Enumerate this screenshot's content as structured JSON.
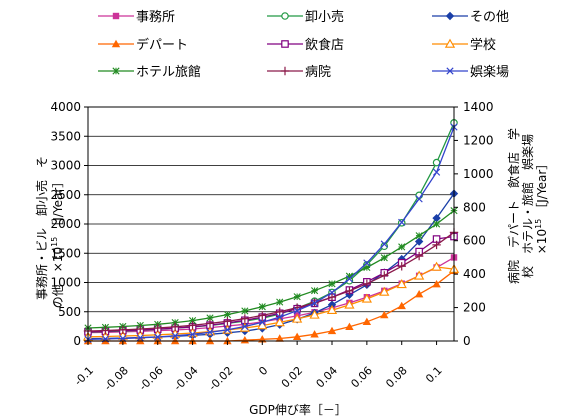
{
  "chart_data": {
    "type": "line",
    "x": [
      -0.1,
      -0.09,
      -0.08,
      -0.07,
      -0.06,
      -0.05,
      -0.04,
      -0.03,
      -0.02,
      -0.01,
      0,
      0.01,
      0.02,
      0.03,
      0.04,
      0.05,
      0.06,
      0.07,
      0.08,
      0.09,
      0.1,
      0.11
    ],
    "x_ticks": [
      "-0.1",
      "-0.08",
      "-0.06",
      "-0.04",
      "-0.02",
      "0",
      "0.02",
      "0.04",
      "0.06",
      "0.08",
      "0.1"
    ],
    "x_tick_values": [
      -0.1,
      -0.08,
      -0.06,
      -0.04,
      -0.02,
      0,
      0.02,
      0.04,
      0.06,
      0.08,
      0.1
    ],
    "xlim": [
      -0.1,
      0.11
    ],
    "xlabel": "GDP伸び率［－］",
    "y_left": {
      "lim": [
        0,
        4000
      ],
      "ticks": [
        "0",
        "500",
        "1000",
        "1500",
        "2000",
        "2500",
        "3000",
        "3500",
        "4000"
      ],
      "tick_values": [
        0,
        500,
        1000,
        1500,
        2000,
        2500,
        3000,
        3500,
        4000
      ]
    },
    "y_right": {
      "lim": [
        0,
        1400
      ],
      "ticks": [
        "0",
        "200",
        "400",
        "600",
        "800",
        "1000",
        "1200",
        "1400"
      ],
      "tick_values": [
        0,
        200,
        400,
        600,
        800,
        1000,
        1200,
        1400
      ]
    },
    "ylabel_left": {
      "line1": "事務所・ビル　卸小売　そ",
      "line2": "の他　×10",
      "sup": "15",
      "unit": "［J/Year］"
    },
    "ylabel_right": {
      "line1": "病院　デパート　飲食店　学",
      "line2": "校　ホテル・旅館　娯楽場",
      "line3": "×10",
      "sup": "15",
      "unit": "［J/Year］"
    },
    "grid": "horizontal",
    "legend_placement": "top",
    "series": [
      {
        "name": "事務所",
        "axis": "right",
        "color": "#cc3399",
        "marker": "square-filled",
        "values": [
          50,
          52,
          55,
          58,
          62,
          66,
          72,
          80,
          90,
          100,
          115,
          132,
          150,
          172,
          198,
          228,
          262,
          300,
          343,
          390,
          440,
          500
        ]
      },
      {
        "name": "卸小売",
        "axis": "left",
        "color": "#229944",
        "marker": "circle-open",
        "values": [
          150,
          160,
          170,
          185,
          200,
          220,
          240,
          265,
          300,
          340,
          390,
          460,
          560,
          680,
          830,
          1030,
          1300,
          1620,
          2020,
          2490,
          3050,
          3730
        ]
      },
      {
        "name": "その他",
        "axis": "left",
        "color": "#1a3fa8",
        "marker": "diamond-filled",
        "values": [
          40,
          45,
          52,
          60,
          70,
          80,
          95,
          115,
          140,
          170,
          215,
          280,
          370,
          480,
          620,
          790,
          960,
          1170,
          1400,
          1700,
          2100,
          2520
        ]
      },
      {
        "name": "デパート",
        "axis": "right",
        "color": "#ff6600",
        "marker": "triangle-filled",
        "values": [
          0,
          0,
          0,
          0,
          0,
          0,
          0,
          0,
          0,
          5,
          10,
          15,
          25,
          40,
          60,
          85,
          115,
          155,
          210,
          280,
          340,
          420
        ]
      },
      {
        "name": "飲食店",
        "axis": "right",
        "color": "#800080",
        "marker": "square-open",
        "values": [
          55,
          58,
          62,
          66,
          71,
          77,
          85,
          95,
          108,
          124,
          143,
          166,
          193,
          225,
          262,
          305,
          354,
          408,
          468,
          535,
          610,
          625
        ]
      },
      {
        "name": "学校",
        "axis": "right",
        "color": "#ff8c00",
        "marker": "triangle-open",
        "values": [
          25,
          27,
          30,
          33,
          37,
          42,
          48,
          56,
          66,
          78,
          93,
          111,
          132,
          156,
          184,
          216,
          252,
          293,
          339,
          390,
          443,
          430
        ]
      },
      {
        "name": "ホテル旅館",
        "axis": "right",
        "color": "#228b22",
        "marker": "star",
        "values": [
          78,
          82,
          87,
          93,
          100,
          110,
          122,
          138,
          158,
          180,
          205,
          233,
          265,
          301,
          342,
          388,
          440,
          498,
          563,
          630,
          700,
          780
        ]
      },
      {
        "name": "病院",
        "axis": "right",
        "color": "#8b1a4a",
        "marker": "plus",
        "values": [
          60,
          63,
          67,
          72,
          78,
          85,
          94,
          105,
          118,
          134,
          153,
          175,
          200,
          229,
          262,
          300,
          343,
          392,
          447,
          508,
          575,
          650
        ]
      },
      {
        "name": "娯楽場",
        "axis": "right",
        "color": "#3344cc",
        "marker": "x",
        "values": [
          10,
          12,
          15,
          19,
          24,
          31,
          40,
          52,
          67,
          87,
          112,
          143,
          181,
          226,
          290,
          372,
          467,
          580,
          710,
          850,
          1010,
          1280
        ]
      }
    ]
  }
}
